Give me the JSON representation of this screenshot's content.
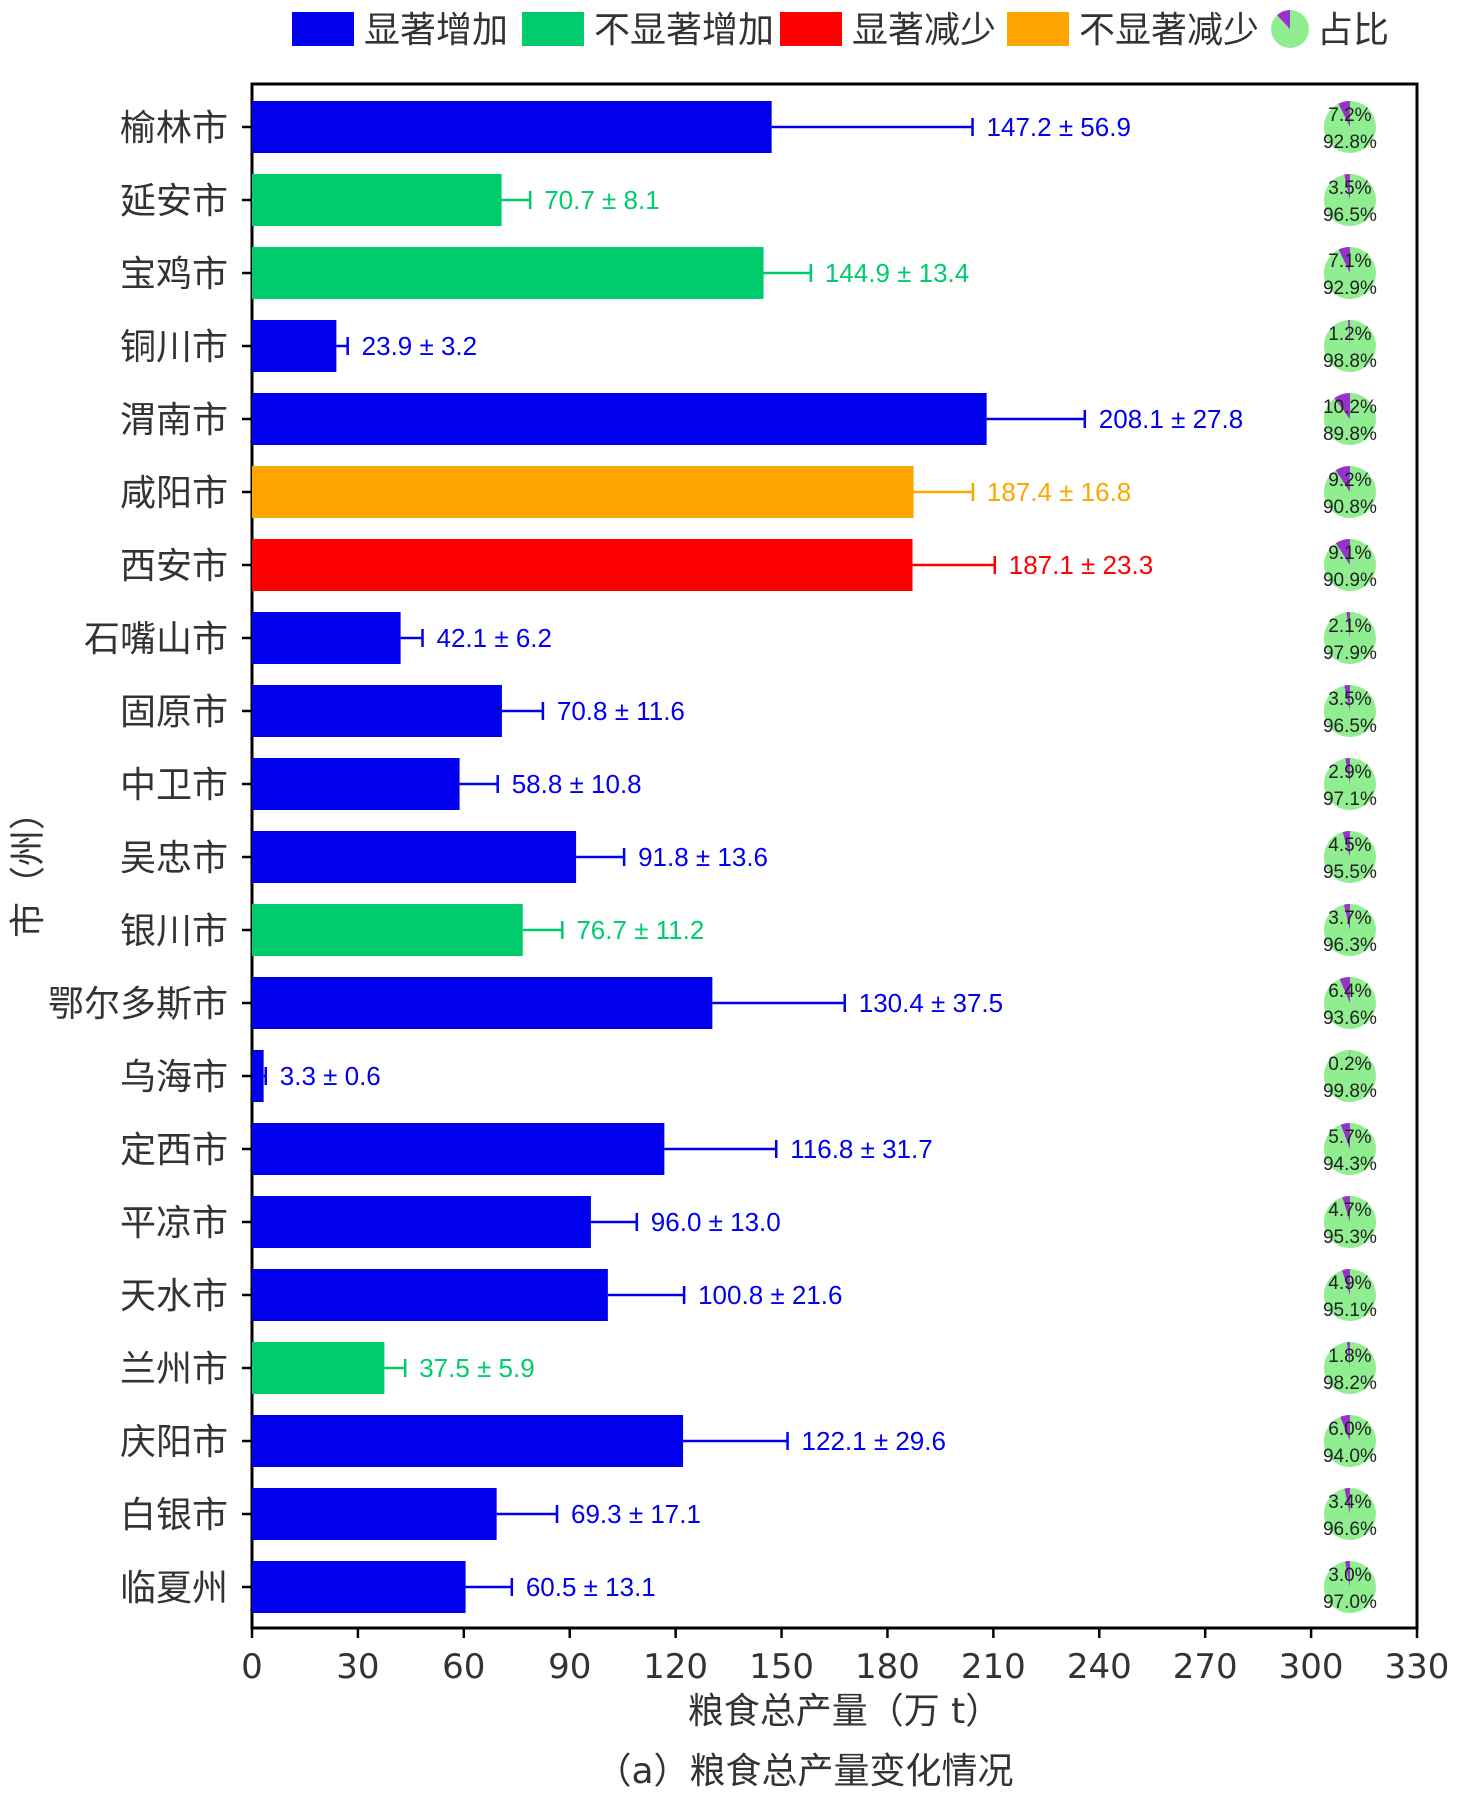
{
  "chart_data": {
    "type": "bar",
    "orientation": "horizontal",
    "title": "（a）粮食总产量变化情况",
    "xlabel": "粮食总产量（万 t）",
    "ylabel": "市（州）",
    "xlim": [
      0,
      330
    ],
    "xticks": [
      0,
      30,
      60,
      90,
      120,
      150,
      180,
      210,
      240,
      270,
      300,
      330
    ],
    "legend": {
      "placement": "top",
      "entries": [
        {
          "key": "sig_inc",
          "label": "显著增加",
          "color": "#0000ee"
        },
        {
          "key": "nonsig_inc",
          "label": "不显著增加",
          "color": "#00cc6e"
        },
        {
          "key": "sig_dec",
          "label": "显著减少",
          "color": "#ff0000"
        },
        {
          "key": "nonsig_dec",
          "label": "不显著减少",
          "color": "#ffa500"
        },
        {
          "key": "share",
          "label": "占比",
          "color": "#90ee90",
          "accent": "#9932cc"
        }
      ]
    },
    "series_colors": {
      "sig_inc": "#0000ee",
      "nonsig_inc": "#00cc6e",
      "sig_dec": "#ff0000",
      "nonsig_dec": "#ffa500"
    },
    "pie_colors": {
      "share": "#9932cc",
      "rest": "#90ee90"
    },
    "rows": [
      {
        "name": "榆林市",
        "value": 147.2,
        "error": 56.9,
        "label": "147.2 ± 56.9",
        "trend": "sig_inc",
        "share": 7.2,
        "share_label": "7.2%",
        "rest_label": "92.8%"
      },
      {
        "name": "延安市",
        "value": 70.7,
        "error": 8.1,
        "label": "70.7 ± 8.1",
        "trend": "nonsig_inc",
        "share": 3.5,
        "share_label": "3.5%",
        "rest_label": "96.5%"
      },
      {
        "name": "宝鸡市",
        "value": 144.9,
        "error": 13.4,
        "label": "144.9 ± 13.4",
        "trend": "nonsig_inc",
        "share": 7.1,
        "share_label": "7.1%",
        "rest_label": "92.9%"
      },
      {
        "name": "铜川市",
        "value": 23.9,
        "error": 3.2,
        "label": "23.9 ± 3.2",
        "trend": "sig_inc",
        "share": 1.2,
        "share_label": "1.2%",
        "rest_label": "98.8%"
      },
      {
        "name": "渭南市",
        "value": 208.1,
        "error": 27.8,
        "label": "208.1 ± 27.8",
        "trend": "sig_inc",
        "share": 10.2,
        "share_label": "10.2%",
        "rest_label": "89.8%"
      },
      {
        "name": "咸阳市",
        "value": 187.4,
        "error": 16.8,
        "label": "187.4 ± 16.8",
        "trend": "nonsig_dec",
        "share": 9.2,
        "share_label": "9.2%",
        "rest_label": "90.8%"
      },
      {
        "name": "西安市",
        "value": 187.1,
        "error": 23.3,
        "label": "187.1 ± 23.3",
        "trend": "sig_dec",
        "share": 9.1,
        "share_label": "9.1%",
        "rest_label": "90.9%"
      },
      {
        "name": "石嘴山市",
        "value": 42.1,
        "error": 6.2,
        "label": "42.1 ± 6.2",
        "trend": "sig_inc",
        "share": 2.1,
        "share_label": "2.1%",
        "rest_label": "97.9%"
      },
      {
        "name": "固原市",
        "value": 70.8,
        "error": 11.6,
        "label": "70.8 ± 11.6",
        "trend": "sig_inc",
        "share": 3.5,
        "share_label": "3.5%",
        "rest_label": "96.5%"
      },
      {
        "name": "中卫市",
        "value": 58.8,
        "error": 10.8,
        "label": "58.8 ± 10.8",
        "trend": "sig_inc",
        "share": 2.9,
        "share_label": "2.9%",
        "rest_label": "97.1%"
      },
      {
        "name": "吴忠市",
        "value": 91.8,
        "error": 13.6,
        "label": "91.8 ± 13.6",
        "trend": "sig_inc",
        "share": 4.5,
        "share_label": "4.5%",
        "rest_label": "95.5%"
      },
      {
        "name": "银川市",
        "value": 76.7,
        "error": 11.2,
        "label": "76.7 ± 11.2",
        "trend": "nonsig_inc",
        "share": 3.7,
        "share_label": "3.7%",
        "rest_label": "96.3%"
      },
      {
        "name": "鄂尔多斯市",
        "value": 130.4,
        "error": 37.5,
        "label": "130.4 ± 37.5",
        "trend": "sig_inc",
        "share": 6.4,
        "share_label": "6.4%",
        "rest_label": "93.6%"
      },
      {
        "name": "乌海市",
        "value": 3.3,
        "error": 0.6,
        "label": "3.3 ± 0.6",
        "trend": "sig_inc",
        "share": 0.2,
        "share_label": "0.2%",
        "rest_label": "99.8%"
      },
      {
        "name": "定西市",
        "value": 116.8,
        "error": 31.7,
        "label": "116.8 ± 31.7",
        "trend": "sig_inc",
        "share": 5.7,
        "share_label": "5.7%",
        "rest_label": "94.3%"
      },
      {
        "name": "平凉市",
        "value": 96.0,
        "error": 13.0,
        "label": "96.0 ± 13.0",
        "trend": "sig_inc",
        "share": 4.7,
        "share_label": "4.7%",
        "rest_label": "95.3%"
      },
      {
        "name": "天水市",
        "value": 100.8,
        "error": 21.6,
        "label": "100.8 ± 21.6",
        "trend": "sig_inc",
        "share": 4.9,
        "share_label": "4.9%",
        "rest_label": "95.1%"
      },
      {
        "name": "兰州市",
        "value": 37.5,
        "error": 5.9,
        "label": "37.5 ± 5.9",
        "trend": "nonsig_inc",
        "share": 1.8,
        "share_label": "1.8%",
        "rest_label": "98.2%"
      },
      {
        "name": "庆阳市",
        "value": 122.1,
        "error": 29.6,
        "label": "122.1 ± 29.6",
        "trend": "sig_inc",
        "share": 6.0,
        "share_label": "6.0%",
        "rest_label": "94.0%"
      },
      {
        "name": "白银市",
        "value": 69.3,
        "error": 17.1,
        "label": "69.3 ± 17.1",
        "trend": "sig_inc",
        "share": 3.4,
        "share_label": "3.4%",
        "rest_label": "96.6%"
      },
      {
        "name": "临夏州",
        "value": 60.5,
        "error": 13.1,
        "label": "60.5 ± 13.1",
        "trend": "sig_inc",
        "share": 3.0,
        "share_label": "3.0%",
        "rest_label": "97.0%"
      }
    ],
    "pie_x": 311,
    "grid": false
  }
}
